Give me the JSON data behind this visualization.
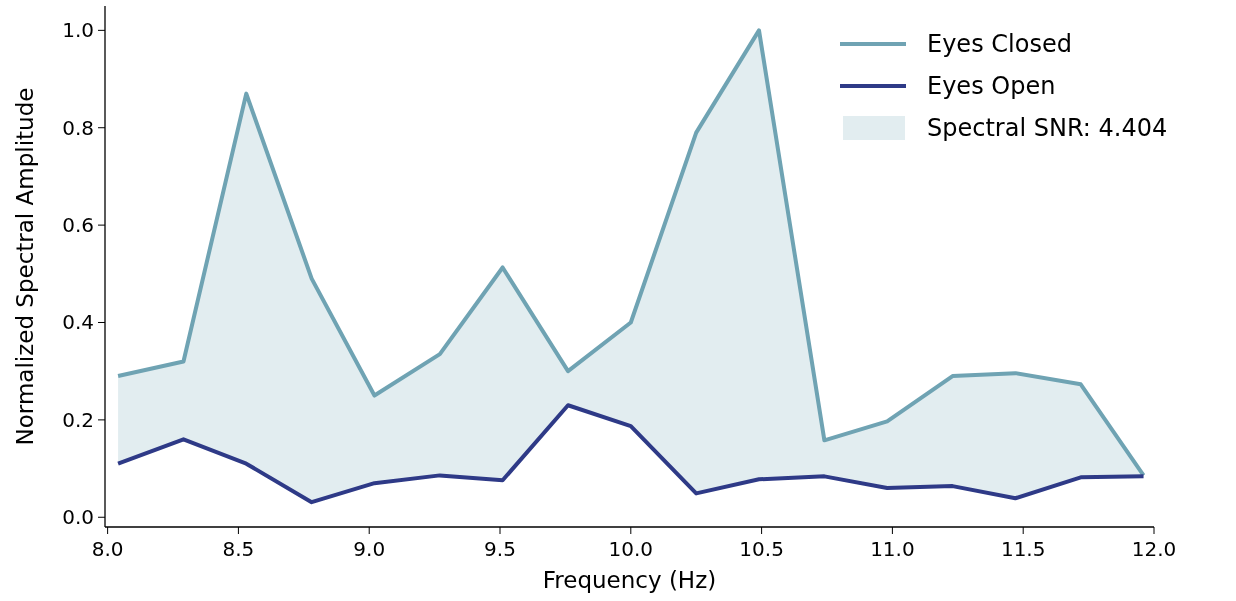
{
  "chart_data": {
    "type": "line",
    "xlabel": "Frequency (Hz)",
    "ylabel": "Normalized Spectral Amplitude",
    "x": [
      8.04,
      8.29,
      8.53,
      8.78,
      9.02,
      9.27,
      9.51,
      9.76,
      10.0,
      10.25,
      10.49,
      10.74,
      10.98,
      11.23,
      11.47,
      11.72,
      11.96
    ],
    "series": [
      {
        "name": "Eyes Closed",
        "color": "#6fa3b3",
        "values": [
          0.29,
          0.32,
          0.87,
          0.49,
          0.25,
          0.335,
          0.513,
          0.3,
          0.4,
          0.79,
          1.0,
          0.158,
          0.197,
          0.29,
          0.296,
          0.273,
          0.086
        ],
        "lower": [
          0.11,
          0.16,
          0.11,
          0.031,
          0.07,
          0.086,
          0.076,
          0.23,
          0.187,
          0.049,
          0.078,
          0.084,
          0.06,
          0.064,
          0.039,
          0.082,
          0.084
        ],
        "upper": [
          0.29,
          0.32,
          0.87,
          0.49,
          0.25,
          0.335,
          0.513,
          0.3,
          0.4,
          0.79,
          1.0,
          0.158,
          0.197,
          0.29,
          0.296,
          0.273,
          0.086
        ]
      },
      {
        "name": "Eyes Open",
        "color": "#2e3a87",
        "values": [
          0.11,
          0.16,
          0.11,
          0.031,
          0.07,
          0.086,
          0.076,
          0.23,
          0.187,
          0.049,
          0.078,
          0.084,
          0.06,
          0.064,
          0.039,
          0.082,
          0.084
        ]
      }
    ],
    "annotations": [
      "Spectral SNR: 4.404"
    ],
    "xlim": [
      7.99,
      12.0
    ],
    "xticks": [
      {
        "value": 8.0,
        "label": "8.0"
      },
      8.5,
      {
        "value": 9.0,
        "label": "9.0"
      },
      9.5,
      {
        "value": 10.0,
        "label": "10.0"
      },
      10.5,
      {
        "value": 11.0,
        "label": "11.0"
      },
      11.5,
      {
        "value": 12.0,
        "label": "12.0"
      }
    ],
    "ylim": [
      -0.02,
      1.05
    ],
    "yticks": [
      {
        "value": 0,
        "label": "0.0"
      },
      0.2,
      0.4,
      0.6,
      0.8,
      {
        "value": 1,
        "label": "1.0"
      }
    ],
    "legend": "top right",
    "grid": false
  }
}
